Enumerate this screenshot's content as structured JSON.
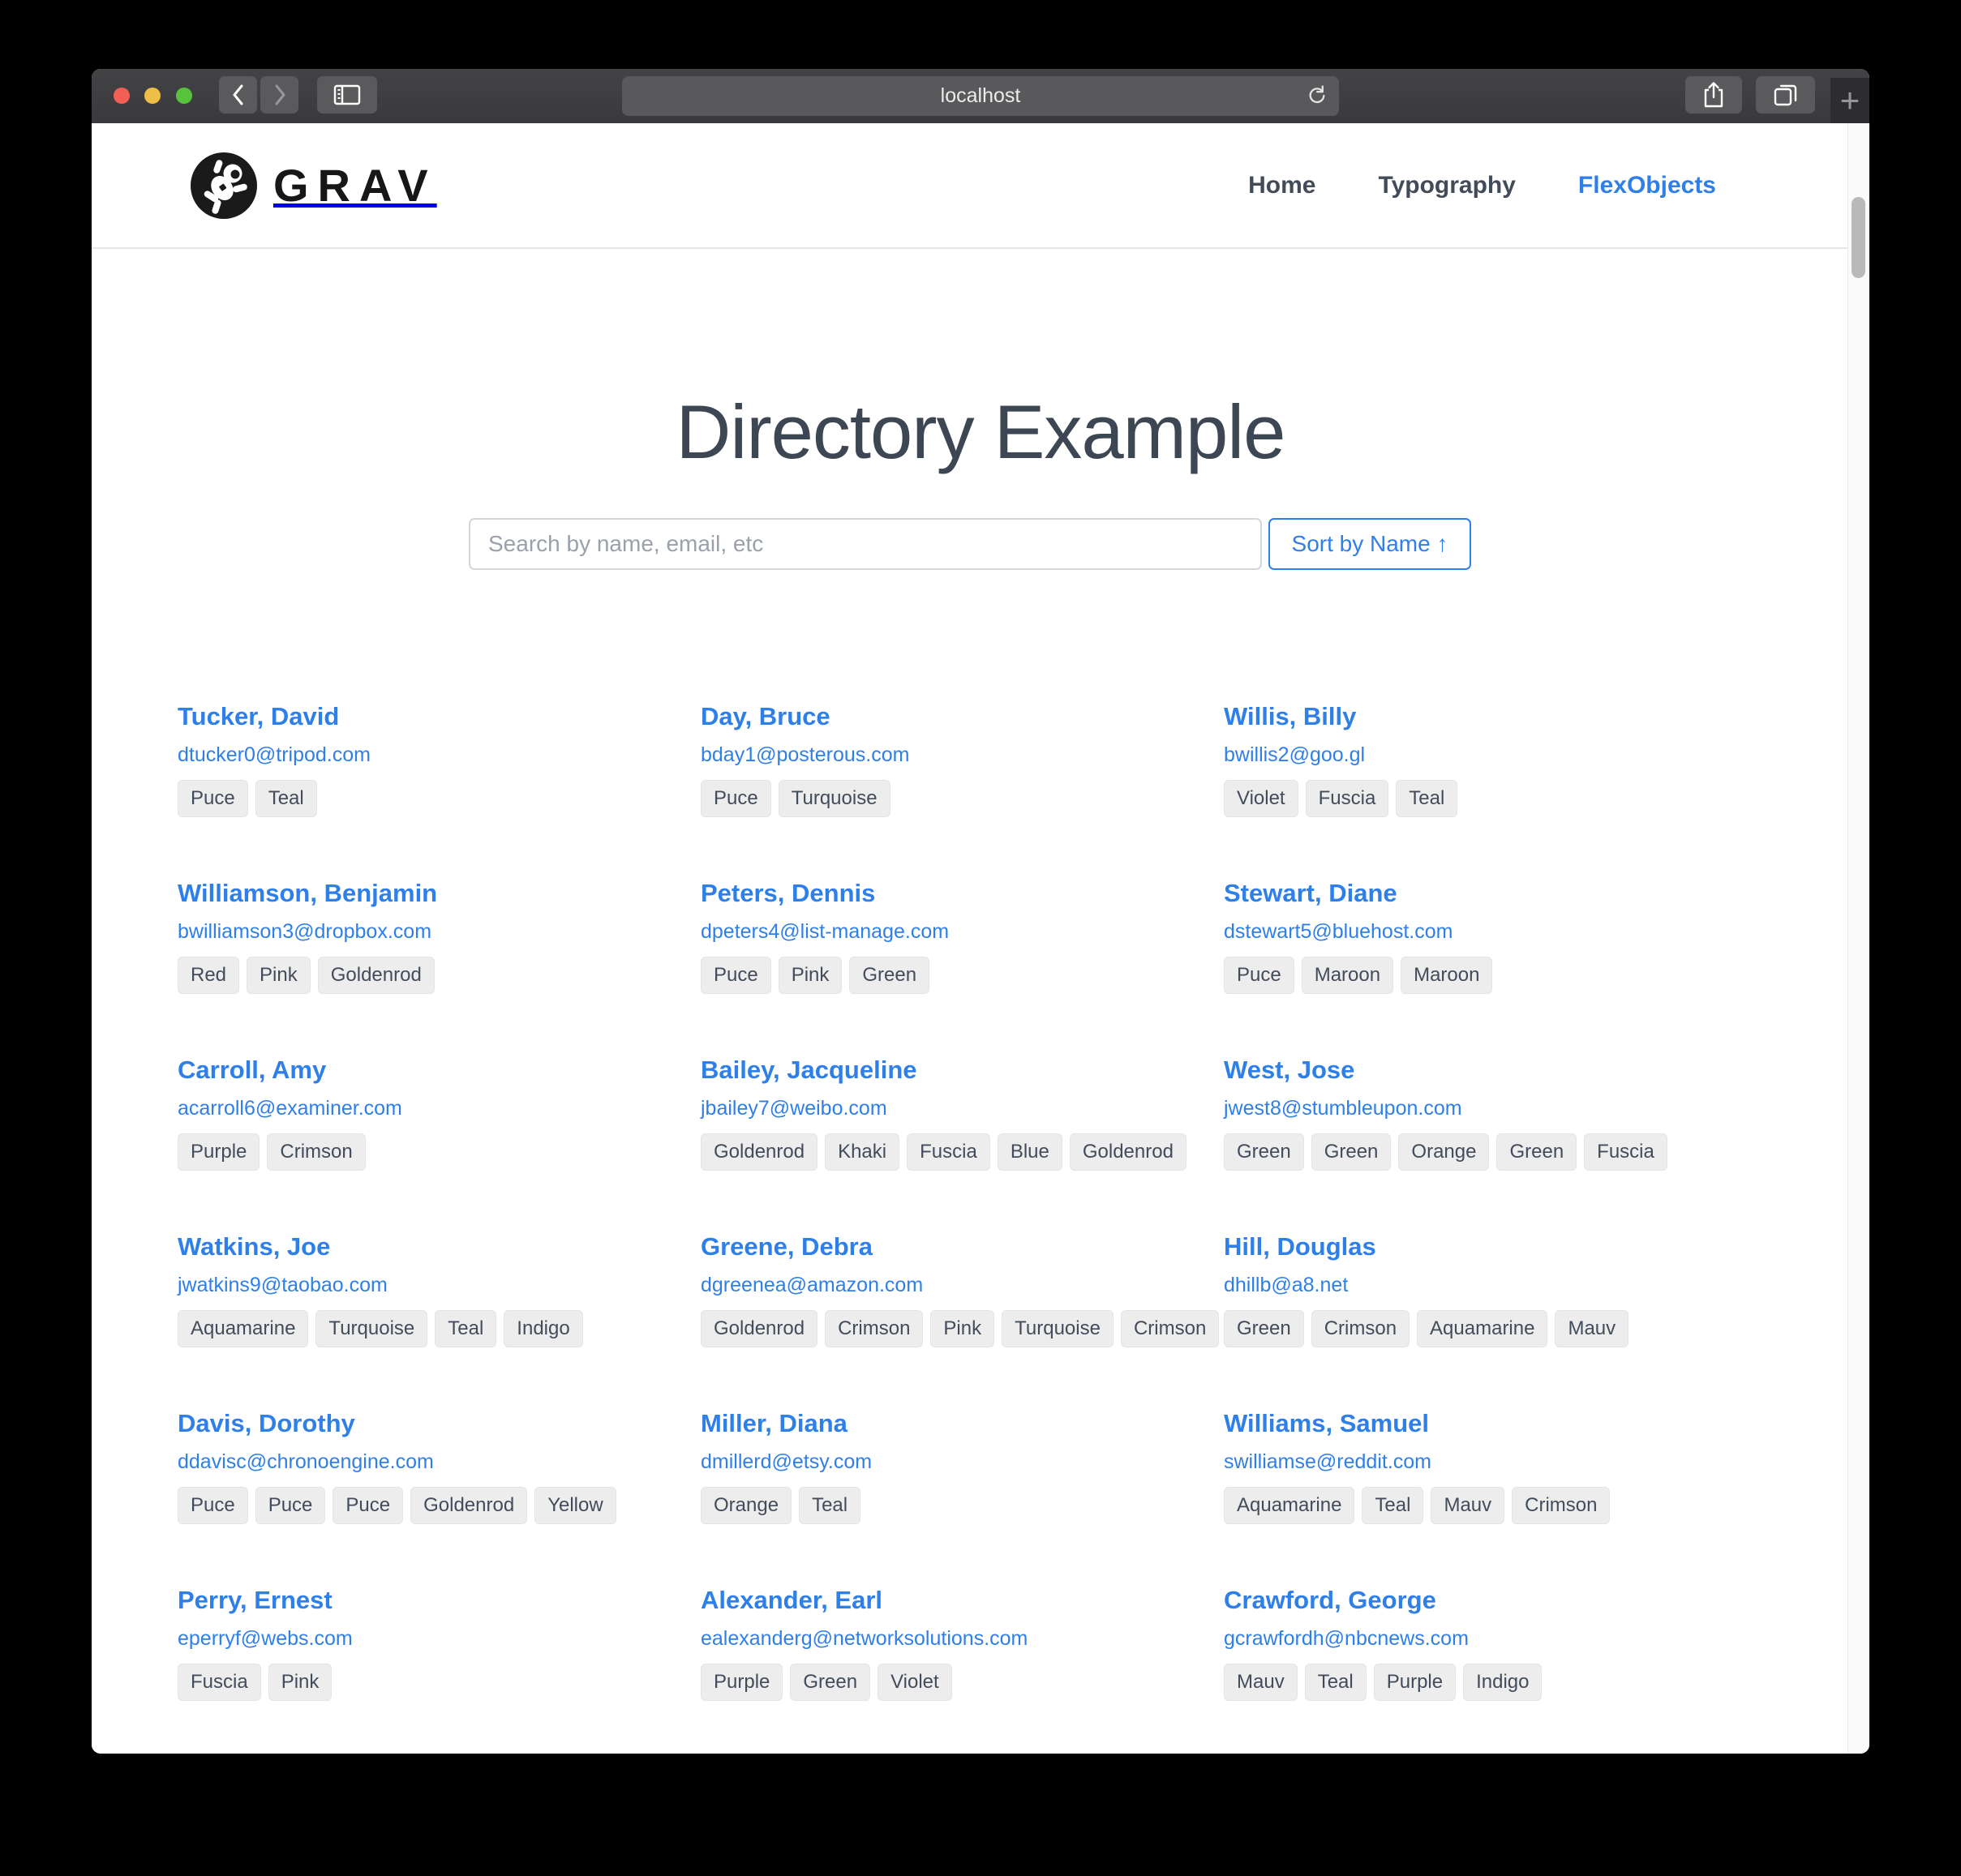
{
  "browser": {
    "url": "localhost",
    "new_tab_glyph": "+"
  },
  "site": {
    "logo_text": "GRAV",
    "nav": [
      {
        "label": "Home",
        "active": false
      },
      {
        "label": "Typography",
        "active": false
      },
      {
        "label": "FlexObjects",
        "active": true
      }
    ]
  },
  "page": {
    "title": "Directory Example",
    "search_placeholder": "Search by name, email, etc",
    "sort_button_label": "Sort by Name ↑"
  },
  "directory": {
    "entries": [
      {
        "name": "Tucker, David",
        "email": "dtucker0@tripod.com",
        "tags": [
          "Puce",
          "Teal"
        ]
      },
      {
        "name": "Day, Bruce",
        "email": "bday1@posterous.com",
        "tags": [
          "Puce",
          "Turquoise"
        ]
      },
      {
        "name": "Willis, Billy",
        "email": "bwillis2@goo.gl",
        "tags": [
          "Violet",
          "Fuscia",
          "Teal"
        ]
      },
      {
        "name": "Williamson, Benjamin",
        "email": "bwilliamson3@dropbox.com",
        "tags": [
          "Red",
          "Pink",
          "Goldenrod"
        ]
      },
      {
        "name": "Peters, Dennis",
        "email": "dpeters4@list-manage.com",
        "tags": [
          "Puce",
          "Pink",
          "Green"
        ]
      },
      {
        "name": "Stewart, Diane",
        "email": "dstewart5@bluehost.com",
        "tags": [
          "Puce",
          "Maroon",
          "Maroon"
        ]
      },
      {
        "name": "Carroll, Amy",
        "email": "acarroll6@examiner.com",
        "tags": [
          "Purple",
          "Crimson"
        ]
      },
      {
        "name": "Bailey, Jacqueline",
        "email": "jbailey7@weibo.com",
        "tags": [
          "Goldenrod",
          "Khaki",
          "Fuscia",
          "Blue",
          "Goldenrod"
        ]
      },
      {
        "name": "West, Jose",
        "email": "jwest8@stumbleupon.com",
        "tags": [
          "Green",
          "Green",
          "Orange",
          "Green",
          "Fuscia"
        ]
      },
      {
        "name": "Watkins, Joe",
        "email": "jwatkins9@taobao.com",
        "tags": [
          "Aquamarine",
          "Turquoise",
          "Teal",
          "Indigo"
        ]
      },
      {
        "name": "Greene, Debra",
        "email": "dgreenea@amazon.com",
        "tags": [
          "Goldenrod",
          "Crimson",
          "Pink",
          "Turquoise",
          "Crimson"
        ]
      },
      {
        "name": "Hill, Douglas",
        "email": "dhillb@a8.net",
        "tags": [
          "Green",
          "Crimson",
          "Aquamarine",
          "Mauv"
        ]
      },
      {
        "name": "Davis, Dorothy",
        "email": "ddavisc@chronoengine.com",
        "tags": [
          "Puce",
          "Puce",
          "Puce",
          "Goldenrod",
          "Yellow"
        ]
      },
      {
        "name": "Miller, Diana",
        "email": "dmillerd@etsy.com",
        "tags": [
          "Orange",
          "Teal"
        ]
      },
      {
        "name": "Williams, Samuel",
        "email": "swilliamse@reddit.com",
        "tags": [
          "Aquamarine",
          "Teal",
          "Mauv",
          "Crimson"
        ]
      },
      {
        "name": "Perry, Ernest",
        "email": "eperryf@webs.com",
        "tags": [
          "Fuscia",
          "Pink"
        ]
      },
      {
        "name": "Alexander, Earl",
        "email": "ealexanderg@networksolutions.com",
        "tags": [
          "Purple",
          "Green",
          "Violet"
        ]
      },
      {
        "name": "Crawford, George",
        "email": "gcrawfordh@nbcnews.com",
        "tags": [
          "Mauv",
          "Teal",
          "Purple",
          "Indigo"
        ]
      }
    ]
  },
  "colors": {
    "accent_blue": "#2f7fe9",
    "tag_background": "#ededed",
    "title_text": "#3d4653"
  }
}
